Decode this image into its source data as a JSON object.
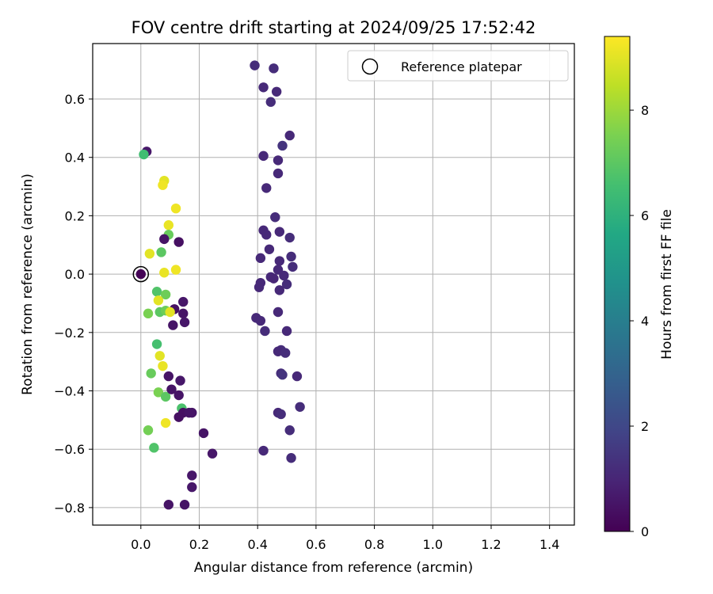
{
  "chart_data": {
    "type": "scatter",
    "title": "FOV centre drift starting at 2024/09/25 17:52:42",
    "xlabel": "Angular distance from reference (arcmin)",
    "ylabel": "Rotation from reference (arcmin)",
    "xlim": [
      -0.165,
      1.485
    ],
    "ylim": [
      -0.86,
      0.79
    ],
    "xticks": [
      0.0,
      0.2,
      0.4,
      0.6,
      0.8,
      1.0,
      1.2,
      1.4
    ],
    "yticks": [
      0.6,
      0.4,
      0.2,
      0.0,
      -0.2,
      -0.4,
      -0.6,
      -0.8
    ],
    "grid": true,
    "legend_position": "top-right",
    "reference": {
      "name": "Reference platepar",
      "x": 0.0,
      "y": 0.0
    },
    "colorbar": {
      "label": "Hours from first FF file",
      "range": [
        0,
        9.4
      ],
      "ticks": [
        0,
        2,
        4,
        6,
        8
      ],
      "colormap": "viridis"
    },
    "series": [
      {
        "points": [
          {
            "x": 0.02,
            "y": 0.42,
            "c": 0.6
          },
          {
            "x": 0.01,
            "y": 0.41,
            "c": 6.5
          },
          {
            "x": 0.08,
            "y": 0.32,
            "c": 9.0
          },
          {
            "x": 0.075,
            "y": 0.305,
            "c": 9.2
          },
          {
            "x": 0.12,
            "y": 0.225,
            "c": 9.2
          },
          {
            "x": 0.095,
            "y": 0.168,
            "c": 9.1
          },
          {
            "x": 0.095,
            "y": 0.135,
            "c": 7.2
          },
          {
            "x": 0.08,
            "y": 0.12,
            "c": 0.5
          },
          {
            "x": 0.13,
            "y": 0.11,
            "c": 0.4
          },
          {
            "x": 0.07,
            "y": 0.075,
            "c": 7.0
          },
          {
            "x": 0.03,
            "y": 0.07,
            "c": 9.0
          },
          {
            "x": 0.08,
            "y": 0.005,
            "c": 9.1
          },
          {
            "x": 0.12,
            "y": 0.015,
            "c": 9.2
          },
          {
            "x": 0.055,
            "y": -0.06,
            "c": 6.8
          },
          {
            "x": 0.085,
            "y": -0.07,
            "c": 7.3
          },
          {
            "x": 0.06,
            "y": -0.09,
            "c": 9.0
          },
          {
            "x": 0.145,
            "y": -0.095,
            "c": 0.6
          },
          {
            "x": 0.115,
            "y": -0.12,
            "c": 0.4
          },
          {
            "x": 0.065,
            "y": -0.13,
            "c": 7.0
          },
          {
            "x": 0.085,
            "y": -0.125,
            "c": 7.3
          },
          {
            "x": 0.1,
            "y": -0.13,
            "c": 9.0
          },
          {
            "x": 0.025,
            "y": -0.135,
            "c": 7.5
          },
          {
            "x": 0.145,
            "y": -0.135,
            "c": 0.5
          },
          {
            "x": 0.15,
            "y": -0.165,
            "c": 0.6
          },
          {
            "x": 0.11,
            "y": -0.175,
            "c": 0.5
          },
          {
            "x": 0.055,
            "y": -0.24,
            "c": 6.6
          },
          {
            "x": 0.065,
            "y": -0.28,
            "c": 9.0
          },
          {
            "x": 0.075,
            "y": -0.315,
            "c": 9.1
          },
          {
            "x": 0.035,
            "y": -0.34,
            "c": 7.2
          },
          {
            "x": 0.095,
            "y": -0.35,
            "c": 0.5
          },
          {
            "x": 0.135,
            "y": -0.365,
            "c": 0.6
          },
          {
            "x": 0.06,
            "y": -0.405,
            "c": 7.5
          },
          {
            "x": 0.085,
            "y": -0.42,
            "c": 7.0
          },
          {
            "x": 0.105,
            "y": -0.395,
            "c": 0.5
          },
          {
            "x": 0.13,
            "y": -0.415,
            "c": 0.5
          },
          {
            "x": 0.14,
            "y": -0.46,
            "c": 6.7
          },
          {
            "x": 0.145,
            "y": -0.475,
            "c": 0.4
          },
          {
            "x": 0.165,
            "y": -0.475,
            "c": 0.5
          },
          {
            "x": 0.175,
            "y": -0.475,
            "c": 0.5
          },
          {
            "x": 0.13,
            "y": -0.49,
            "c": 0.4
          },
          {
            "x": 0.085,
            "y": -0.51,
            "c": 9.2
          },
          {
            "x": 0.025,
            "y": -0.535,
            "c": 7.4
          },
          {
            "x": 0.215,
            "y": -0.545,
            "c": 0.5
          },
          {
            "x": 0.045,
            "y": -0.595,
            "c": 6.8
          },
          {
            "x": 0.245,
            "y": -0.615,
            "c": 0.6
          },
          {
            "x": 0.175,
            "y": -0.69,
            "c": 0.6
          },
          {
            "x": 0.175,
            "y": -0.73,
            "c": 0.6
          },
          {
            "x": 0.095,
            "y": -0.79,
            "c": 0.5
          },
          {
            "x": 0.15,
            "y": -0.79,
            "c": 0.5
          },
          {
            "x": 0.39,
            "y": 0.715,
            "c": 1.2
          },
          {
            "x": 0.455,
            "y": 0.705,
            "c": 1.2
          },
          {
            "x": 0.42,
            "y": 0.64,
            "c": 1.1
          },
          {
            "x": 0.465,
            "y": 0.625,
            "c": 1.1
          },
          {
            "x": 0.445,
            "y": 0.59,
            "c": 1.2
          },
          {
            "x": 0.51,
            "y": 0.475,
            "c": 1.1
          },
          {
            "x": 0.485,
            "y": 0.44,
            "c": 1.4
          },
          {
            "x": 0.42,
            "y": 0.405,
            "c": 1.1
          },
          {
            "x": 0.47,
            "y": 0.39,
            "c": 1.1
          },
          {
            "x": 0.47,
            "y": 0.345,
            "c": 1.1
          },
          {
            "x": 0.43,
            "y": 0.295,
            "c": 1.1
          },
          {
            "x": 0.46,
            "y": 0.195,
            "c": 1.2
          },
          {
            "x": 0.42,
            "y": 0.15,
            "c": 1.1
          },
          {
            "x": 0.475,
            "y": 0.145,
            "c": 1.1
          },
          {
            "x": 0.43,
            "y": 0.135,
            "c": 1.1
          },
          {
            "x": 0.51,
            "y": 0.125,
            "c": 1.2
          },
          {
            "x": 0.44,
            "y": 0.085,
            "c": 1.1
          },
          {
            "x": 0.515,
            "y": 0.06,
            "c": 1.2
          },
          {
            "x": 0.41,
            "y": 0.055,
            "c": 1.1
          },
          {
            "x": 0.475,
            "y": 0.045,
            "c": 1.1
          },
          {
            "x": 0.52,
            "y": 0.025,
            "c": 1.2
          },
          {
            "x": 0.47,
            "y": 0.015,
            "c": 1.1
          },
          {
            "x": 0.49,
            "y": -0.005,
            "c": 1.1
          },
          {
            "x": 0.445,
            "y": -0.01,
            "c": 1.1
          },
          {
            "x": 0.455,
            "y": -0.015,
            "c": 1.0
          },
          {
            "x": 0.41,
            "y": -0.03,
            "c": 1.1
          },
          {
            "x": 0.5,
            "y": -0.035,
            "c": 1.2
          },
          {
            "x": 0.405,
            "y": -0.045,
            "c": 1.1
          },
          {
            "x": 0.475,
            "y": -0.055,
            "c": 1.1
          },
          {
            "x": 0.47,
            "y": -0.13,
            "c": 1.1
          },
          {
            "x": 0.395,
            "y": -0.15,
            "c": 1.1
          },
          {
            "x": 0.41,
            "y": -0.16,
            "c": 1.1
          },
          {
            "x": 0.425,
            "y": -0.195,
            "c": 1.2
          },
          {
            "x": 0.5,
            "y": -0.195,
            "c": 1.1
          },
          {
            "x": 0.48,
            "y": -0.26,
            "c": 1.2
          },
          {
            "x": 0.47,
            "y": -0.265,
            "c": 1.1
          },
          {
            "x": 0.495,
            "y": -0.27,
            "c": 1.2
          },
          {
            "x": 0.48,
            "y": -0.34,
            "c": 1.2
          },
          {
            "x": 0.485,
            "y": -0.345,
            "c": 1.4
          },
          {
            "x": 0.535,
            "y": -0.35,
            "c": 1.1
          },
          {
            "x": 0.545,
            "y": -0.455,
            "c": 1.2
          },
          {
            "x": 0.47,
            "y": -0.475,
            "c": 1.1
          },
          {
            "x": 0.48,
            "y": -0.48,
            "c": 1.2
          },
          {
            "x": 0.51,
            "y": -0.535,
            "c": 1.2
          },
          {
            "x": 0.42,
            "y": -0.605,
            "c": 1.1
          },
          {
            "x": 0.515,
            "y": -0.63,
            "c": 1.2
          }
        ]
      }
    ]
  }
}
